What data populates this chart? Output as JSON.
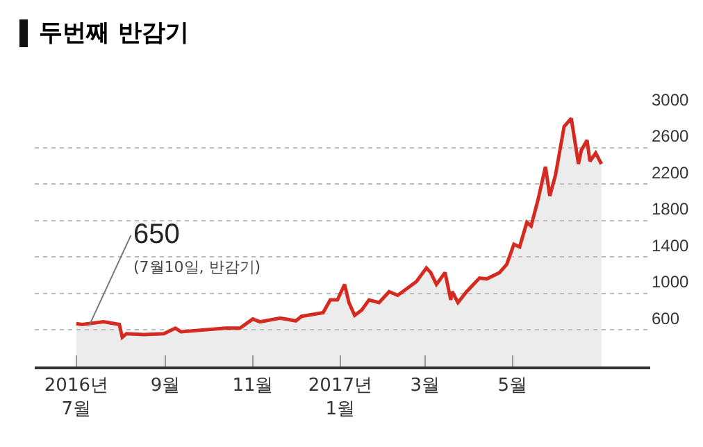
{
  "chart_data": {
    "type": "area",
    "title": "두번째 반감기",
    "x": [
      "2016-07-01",
      "2016-07-05",
      "2016-07-20",
      "2016-07-31",
      "2016-08-02",
      "2016-08-05",
      "2016-08-17",
      "2016-08-31",
      "2016-09-08",
      "2016-09-12",
      "2016-10-13",
      "2016-10-23",
      "2016-11-01",
      "2016-11-06",
      "2016-11-20",
      "2016-12-01",
      "2016-12-05",
      "2016-12-20",
      "2016-12-25",
      "2016-12-30",
      "2017-01-04",
      "2017-01-07",
      "2017-01-11",
      "2017-01-16",
      "2017-01-21",
      "2017-01-28",
      "2017-02-04",
      "2017-02-10",
      "2017-02-23",
      "2017-03-02",
      "2017-03-05",
      "2017-03-09",
      "2017-03-15",
      "2017-03-19",
      "2017-03-20",
      "2017-03-24",
      "2017-03-30",
      "2017-04-08",
      "2017-04-13",
      "2017-04-22",
      "2017-04-27",
      "2017-05-02",
      "2017-05-06",
      "2017-05-11",
      "2017-05-14",
      "2017-05-19",
      "2017-05-24",
      "2017-05-27",
      "2017-05-31",
      "2017-06-06",
      "2017-06-11",
      "2017-06-16",
      "2017-06-18",
      "2017-06-22",
      "2017-06-24",
      "2017-06-28",
      "2017-07-02"
    ],
    "series": [
      {
        "color": "#d42a20",
        "values": [
          670,
          660,
          690,
          660,
          520,
          560,
          550,
          560,
          620,
          580,
          620,
          620,
          720,
          690,
          730,
          700,
          750,
          790,
          930,
          930,
          1100,
          900,
          760,
          820,
          930,
          900,
          1020,
          980,
          1130,
          1280,
          1230,
          1100,
          1230,
          930,
          1020,
          900,
          1020,
          1170,
          1160,
          1230,
          1320,
          1540,
          1510,
          1780,
          1740,
          2040,
          2390,
          2070,
          2300,
          2830,
          2920,
          2420,
          2570,
          2680,
          2450,
          2540,
          2420
        ]
      }
    ],
    "xlim": [
      "2016-06-02",
      "2017-08-05"
    ],
    "xticks": [
      {
        "value": "2016-07-01",
        "label": "2016년\n7월"
      },
      {
        "value": "2016-09-01",
        "label": "9월"
      },
      {
        "value": "2016-11-01",
        "label": "11월"
      },
      {
        "value": "2017-01-01",
        "label": "2017년\n1월"
      },
      {
        "value": "2017-03-01",
        "label": "3월"
      },
      {
        "value": "2017-05-01",
        "label": "5월"
      }
    ],
    "ylim": [
      200,
      3000
    ],
    "yticks": [
      600,
      1000,
      1400,
      1800,
      2200,
      2600,
      3000
    ],
    "grid": "y",
    "annotations": [
      {
        "text": "650",
        "x": "2016-07-10",
        "y": 650
      },
      "(7월10일, 반감기)"
    ]
  }
}
